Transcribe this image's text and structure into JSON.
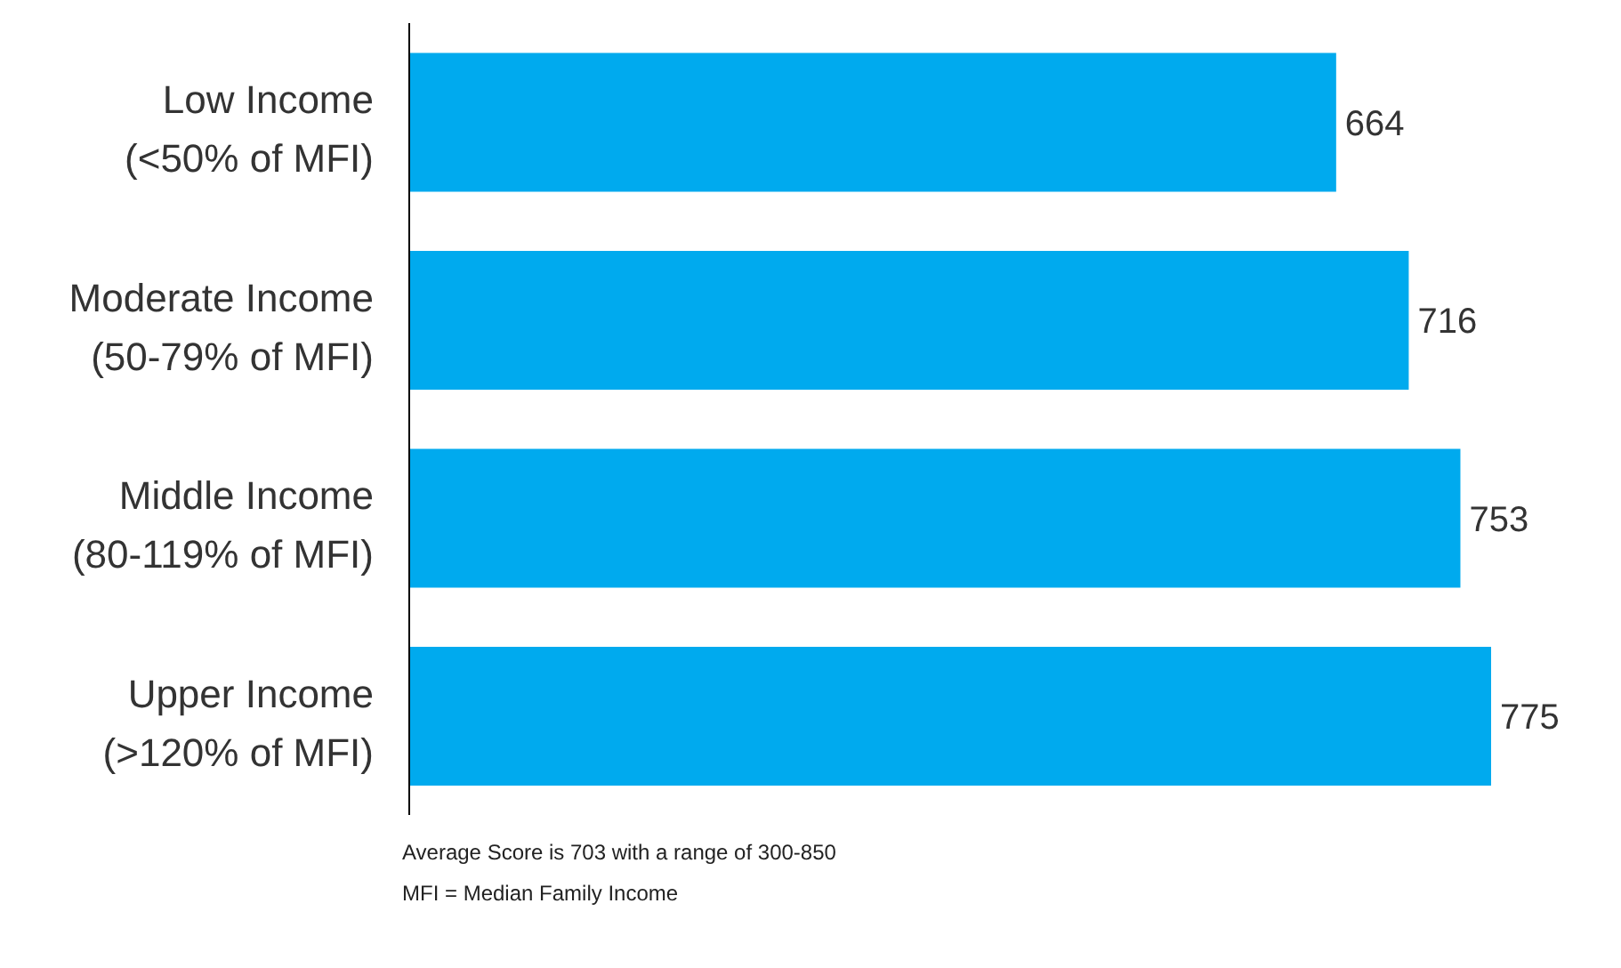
{
  "chart_data": {
    "type": "bar",
    "orientation": "horizontal",
    "categories": [
      "Low Income (<50% of MFI)",
      "Moderate Income (50-79% of MFI)",
      "Middle Income (80-119% of MFI)",
      "Upper Income (>120% of MFI)"
    ],
    "values": [
      664,
      716,
      753,
      775
    ],
    "color": "#00aaee",
    "data_labels": true,
    "annotations": [
      "Average Score is 703 with a range of 300-850",
      "MFI = Median Family Income"
    ]
  }
}
